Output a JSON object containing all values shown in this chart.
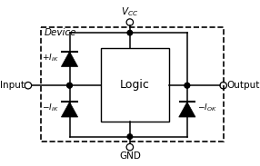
{
  "bg_color": "#ffffff",
  "vcc_label": "$V_{CC}$",
  "gnd_label": "GND",
  "input_label": "Input",
  "output_label": "Output",
  "device_label": "Device",
  "plus_iik_label": "$+I_{IK}$",
  "minus_iik_label": "$-I_{IK}$",
  "minus_iok_label": "$-I_{OK}$",
  "logic_label": "Logic",
  "fig_w": 2.86,
  "fig_h": 1.83,
  "dpi": 100
}
